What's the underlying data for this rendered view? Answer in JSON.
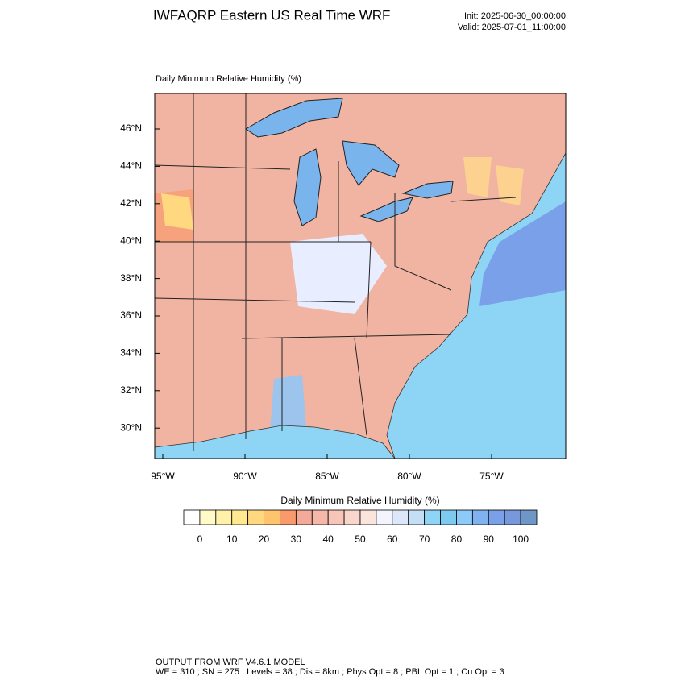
{
  "header": {
    "title": "IWFAQRP Eastern US Real Time WRF",
    "init": "Init: 2025-06-30_00:00:00",
    "valid": "Valid: 2025-07-01_11:00:00"
  },
  "map": {
    "field_label": "Daily Minimum Relative Humidity   (%)",
    "lat_labels": [
      "46°N",
      "44°N",
      "42°N",
      "40°N",
      "38°N",
      "36°N",
      "34°N",
      "32°N",
      "30°N"
    ],
    "lon_labels": [
      "95°W",
      "90°W",
      "85°W",
      "80°W",
      "75°W"
    ]
  },
  "colorbar": {
    "title": "Daily Minimum Relative Humidity  (%)",
    "colors": [
      "#ffffff",
      "#fffac8",
      "#fff2a8",
      "#ffe890",
      "#ffd880",
      "#ffc46c",
      "#f89a6c",
      "#f4aa98",
      "#f5b8a8",
      "#f7c6b8",
      "#f9d6cc",
      "#fbe4dc",
      "#f4f4ff",
      "#dce8fa",
      "#c4def6",
      "#8ed4f4",
      "#7ccaf0",
      "#8ccaf8",
      "#80b2f0",
      "#7aa0ea",
      "#7898dc",
      "#6e96c6"
    ],
    "ticks": [
      0,
      10,
      20,
      30,
      40,
      50,
      60,
      70,
      80,
      90,
      100
    ]
  },
  "footer": {
    "line1": "OUTPUT FROM WRF V4.6.1 MODEL",
    "line2": "WE = 310 ; SN = 275 ; Levels = 38 ; Dis = 8km ; Phys Opt = 8 ; PBL Opt = 1 ; Cu Opt = 3"
  }
}
